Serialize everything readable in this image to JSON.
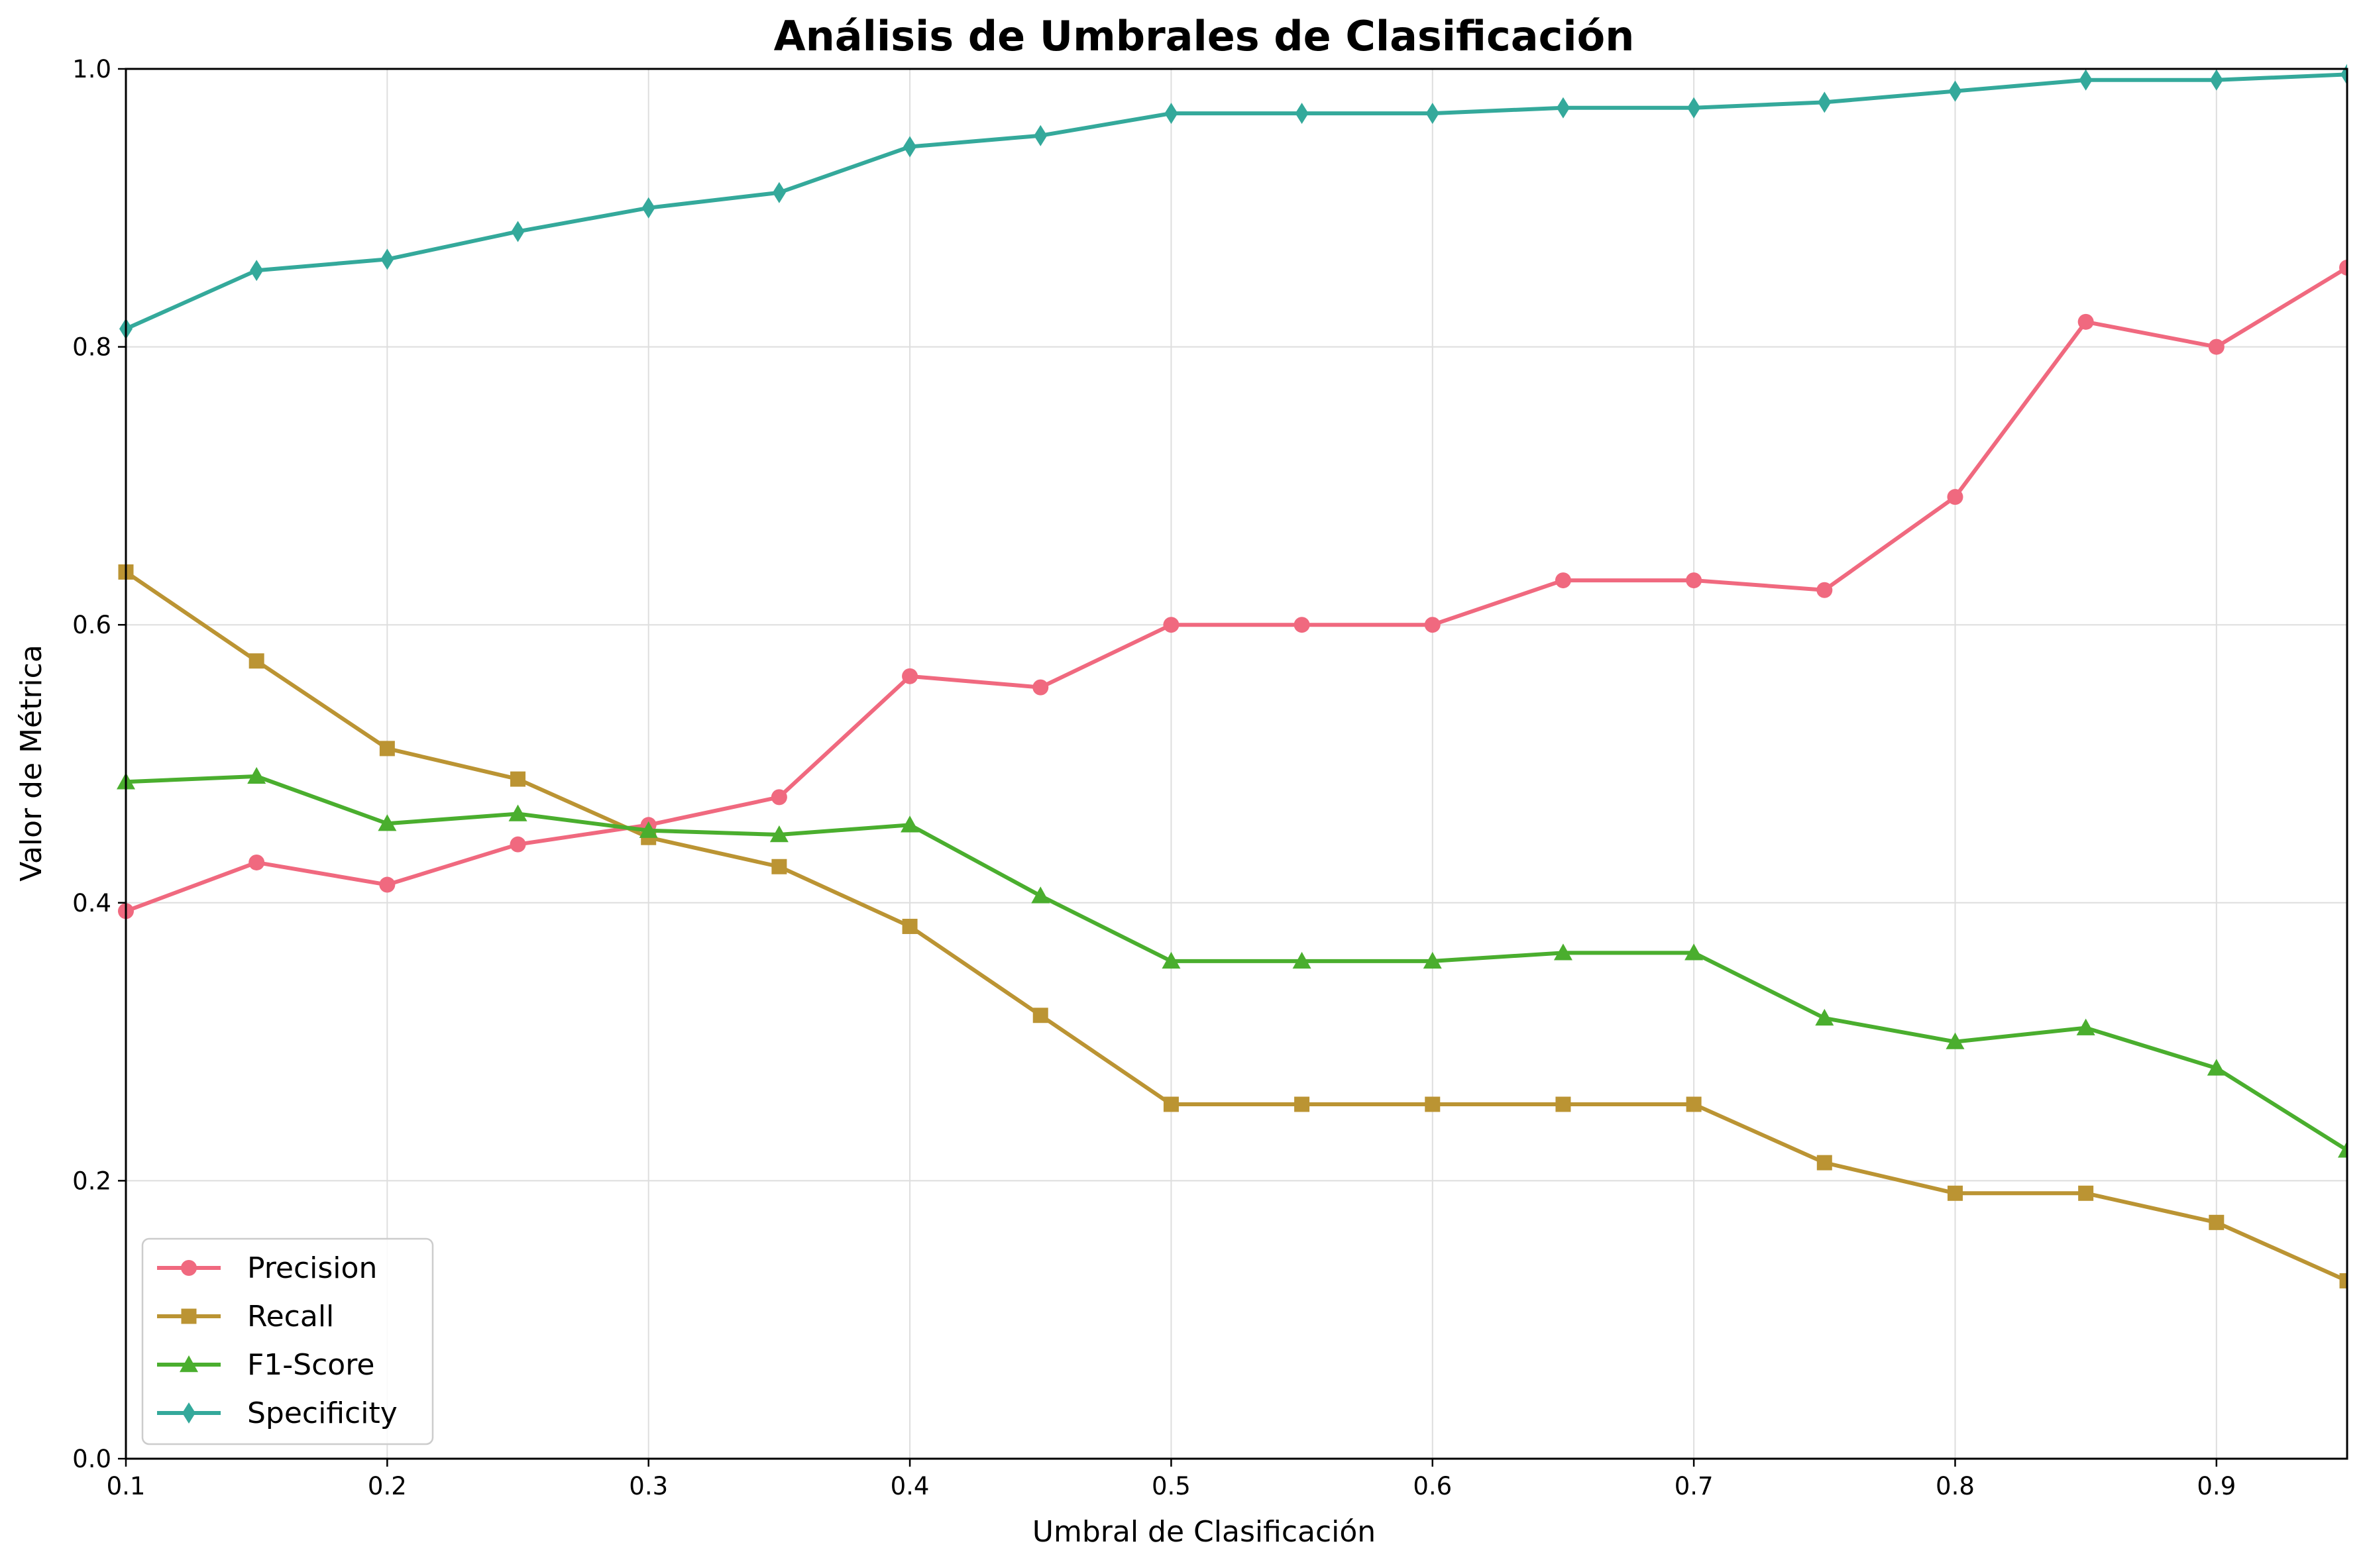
{
  "chart_data": {
    "type": "line",
    "title": "Análisis de Umbrales de Clasificación",
    "xlabel": "Umbral de Clasificación",
    "ylabel": "Valor de Métrica",
    "xlim": [
      0.1,
      0.95
    ],
    "ylim": [
      0.0,
      1.0
    ],
    "xticks": [
      "0.1",
      "0.2",
      "0.3",
      "0.4",
      "0.5",
      "0.6",
      "0.7",
      "0.8",
      "0.9"
    ],
    "yticks": [
      "0.0",
      "0.2",
      "0.4",
      "0.6",
      "0.8",
      "1.0"
    ],
    "grid": true,
    "legend_position": "lower-left",
    "x": [
      0.1,
      0.15,
      0.2,
      0.25,
      0.3,
      0.35,
      0.4,
      0.45,
      0.5,
      0.55,
      0.6,
      0.65,
      0.7,
      0.75,
      0.8,
      0.85,
      0.9,
      0.95
    ],
    "series": [
      {
        "name": "Precision",
        "color": "#f0697f",
        "marker": "circle",
        "values": [
          0.394,
          0.429,
          0.413,
          0.442,
          0.456,
          0.476,
          0.563,
          0.555,
          0.6,
          0.6,
          0.6,
          0.632,
          0.632,
          0.625,
          0.692,
          0.818,
          0.8,
          0.857
        ]
      },
      {
        "name": "Recall",
        "color": "#bb9433",
        "marker": "square",
        "values": [
          0.638,
          0.574,
          0.511,
          0.489,
          0.447,
          0.426,
          0.383,
          0.319,
          0.255,
          0.255,
          0.255,
          0.255,
          0.255,
          0.213,
          0.191,
          0.191,
          0.17,
          0.128
        ]
      },
      {
        "name": "F1-Score",
        "color": "#4aae2e",
        "marker": "triangle",
        "values": [
          0.487,
          0.491,
          0.457,
          0.464,
          0.452,
          0.449,
          0.456,
          0.405,
          0.358,
          0.358,
          0.358,
          0.364,
          0.364,
          0.317,
          0.3,
          0.31,
          0.281,
          0.222
        ]
      },
      {
        "name": "Specificity",
        "color": "#34a99b",
        "marker": "diamond",
        "values": [
          0.813,
          0.855,
          0.863,
          0.883,
          0.9,
          0.911,
          0.944,
          0.952,
          0.968,
          0.968,
          0.968,
          0.972,
          0.972,
          0.976,
          0.984,
          0.992,
          0.992,
          0.996
        ]
      }
    ]
  }
}
